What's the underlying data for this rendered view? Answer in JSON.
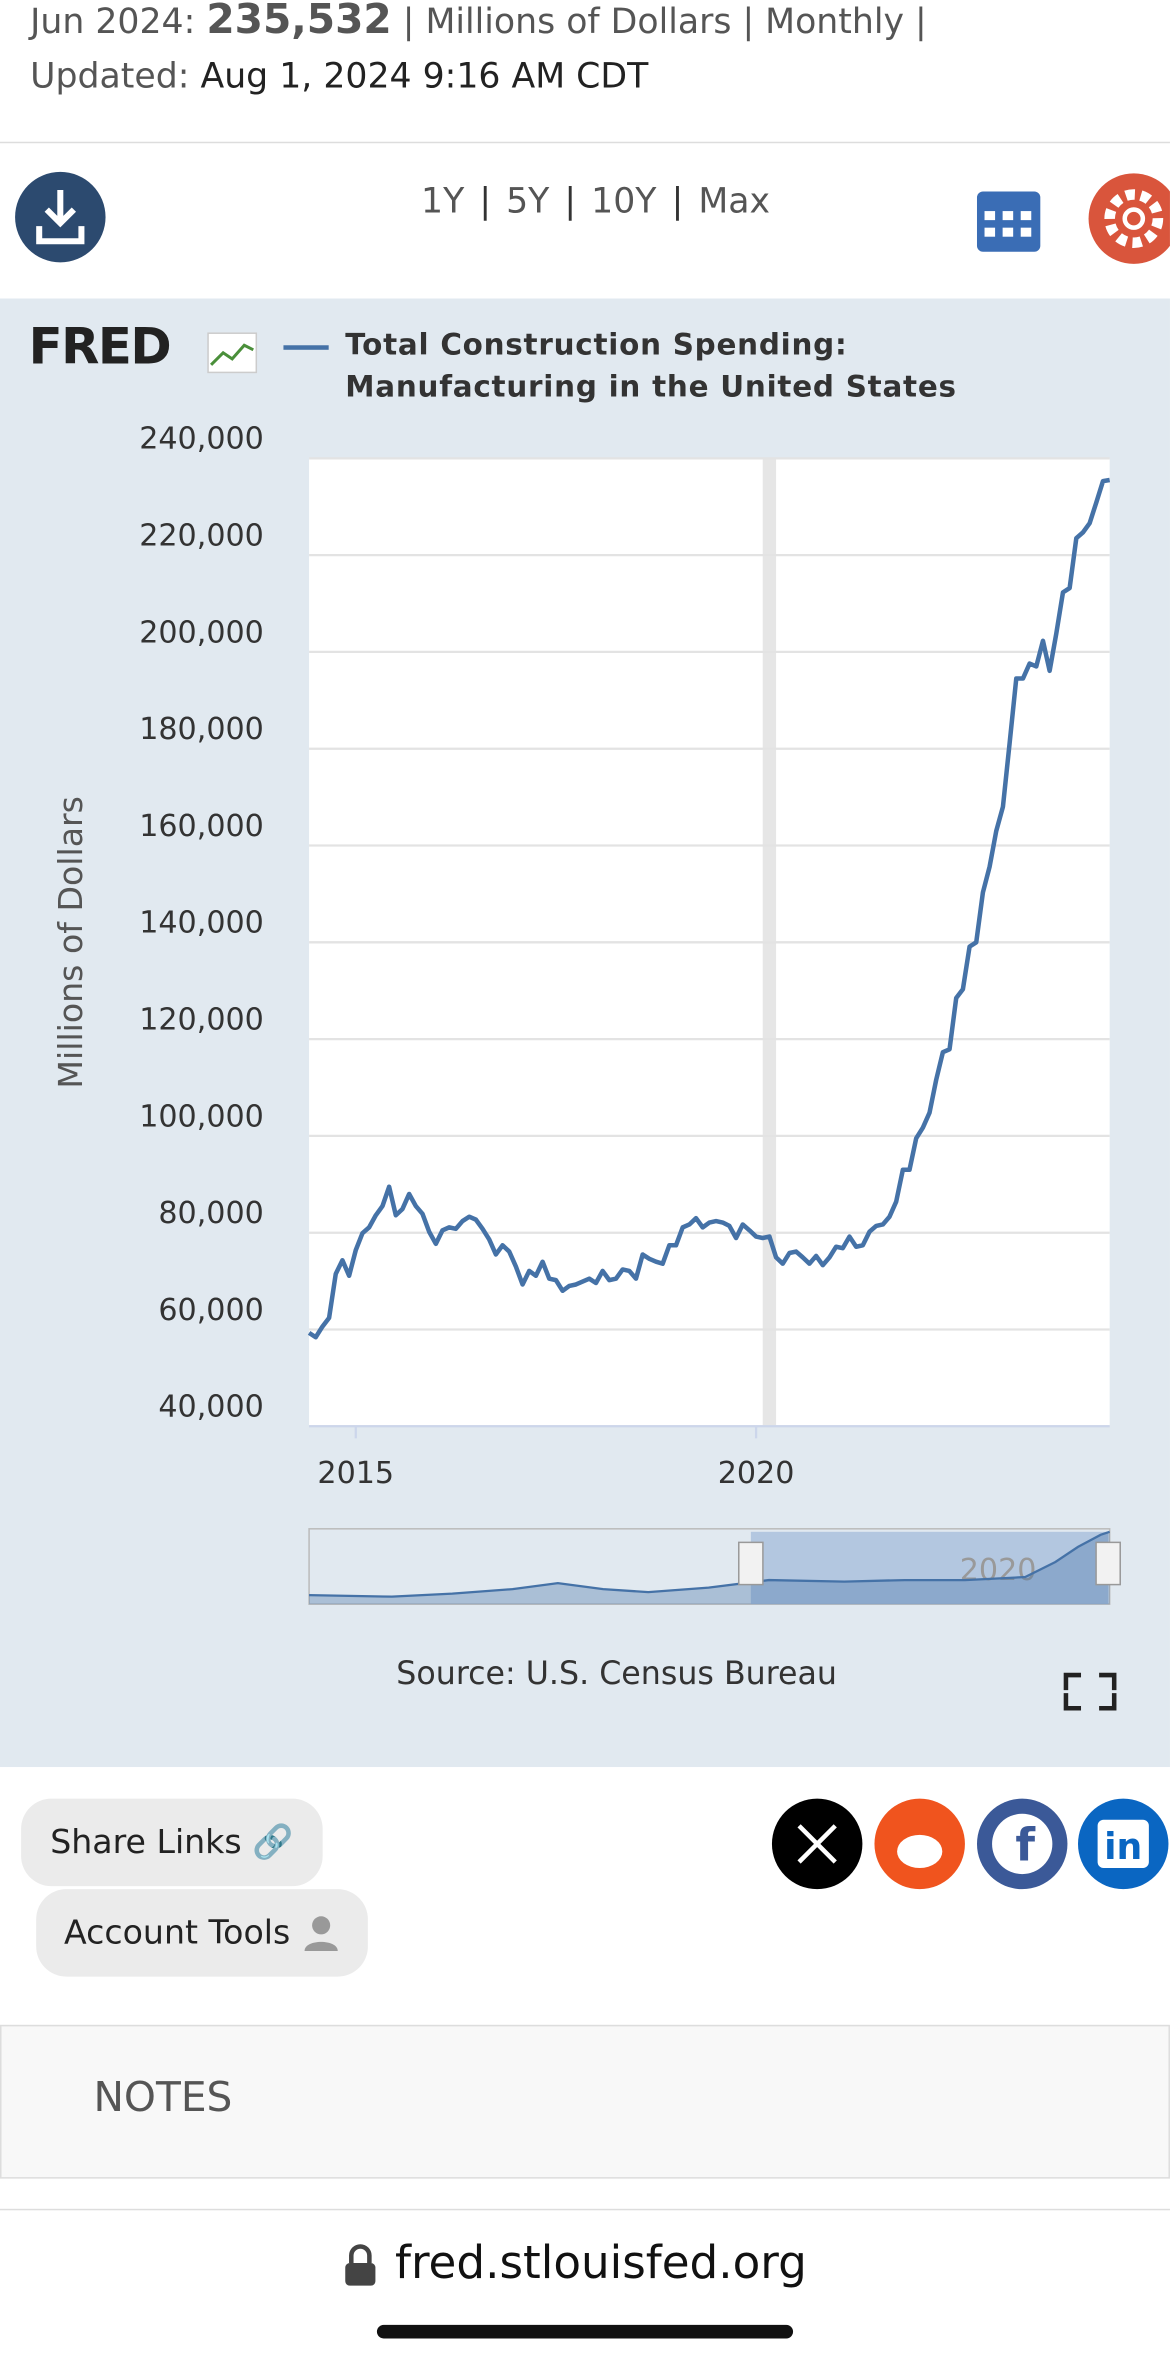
{
  "header": {
    "date": "Jun 2024:",
    "value": "235,532",
    "meta": "| Millions of Dollars | Monthly |",
    "updated_label": "Updated:",
    "updated": "Aug 1, 2024 9:16 AM CDT"
  },
  "ranges": [
    "1Y",
    "5Y",
    "10Y",
    "Max"
  ],
  "logo": "FRED",
  "chart_data": {
    "type": "line",
    "y_label": "Millions of Dollars",
    "source": "Source: U.S. Census Bureau",
    "x": [
      "2014-06",
      "2014-07",
      "2014-08",
      "2014-09",
      "2014-10",
      "2014-11",
      "2014-12",
      "2015-01",
      "2015-02",
      "2015-03",
      "2015-04",
      "2015-05",
      "2015-06",
      "2015-07",
      "2015-08",
      "2015-09",
      "2015-10",
      "2015-11",
      "2015-12",
      "2016-01",
      "2016-02",
      "2016-03",
      "2016-04",
      "2016-05",
      "2016-06",
      "2016-07",
      "2016-08",
      "2016-09",
      "2016-10",
      "2016-11",
      "2016-12",
      "2017-01",
      "2017-02",
      "2017-03",
      "2017-04",
      "2017-05",
      "2017-06",
      "2017-07",
      "2017-08",
      "2017-09",
      "2017-10",
      "2017-11",
      "2017-12",
      "2018-01",
      "2018-02",
      "2018-03",
      "2018-04",
      "2018-05",
      "2018-06",
      "2018-07",
      "2018-08",
      "2018-09",
      "2018-10",
      "2018-11",
      "2018-12",
      "2019-01",
      "2019-02",
      "2019-03",
      "2019-04",
      "2019-05",
      "2019-06",
      "2019-07",
      "2019-08",
      "2019-09",
      "2019-10",
      "2019-11",
      "2019-12",
      "2020-01",
      "2020-02",
      "2020-03",
      "2020-04",
      "2020-05",
      "2020-06",
      "2020-07",
      "2020-08",
      "2020-09",
      "2020-10",
      "2020-11",
      "2020-12",
      "2021-01",
      "2021-02",
      "2021-03",
      "2021-04",
      "2021-05",
      "2021-06",
      "2021-07",
      "2021-08",
      "2021-09",
      "2021-10",
      "2021-11",
      "2021-12",
      "2022-01",
      "2022-02",
      "2022-03",
      "2022-04",
      "2022-05",
      "2022-06",
      "2022-07",
      "2022-08",
      "2022-09",
      "2022-10",
      "2022-11",
      "2022-12",
      "2023-01",
      "2023-02",
      "2023-03",
      "2023-04",
      "2023-05",
      "2023-06",
      "2023-07",
      "2023-08",
      "2023-09",
      "2023-10",
      "2023-11",
      "2023-12",
      "2024-01",
      "2024-02",
      "2024-03",
      "2024-04",
      "2024-05",
      "2024-06"
    ],
    "series": [
      {
        "name": "Total Construction Spending: Manufacturing in the United States",
        "color": "#4572a7",
        "values": [
          59300,
          58400,
          60600,
          62400,
          71500,
          74300,
          71100,
          76400,
          79900,
          81100,
          83600,
          85500,
          89500,
          83600,
          84900,
          88000,
          85500,
          83900,
          80200,
          77700,
          80500,
          81100,
          80800,
          82400,
          83300,
          82700,
          80800,
          78600,
          75500,
          77400,
          76100,
          73000,
          69300,
          72100,
          71100,
          74000,
          70500,
          70200,
          68000,
          69000,
          69300,
          69900,
          70500,
          69600,
          72100,
          70200,
          70500,
          72400,
          72100,
          70500,
          75500,
          74600,
          74000,
          73600,
          77400,
          77400,
          81100,
          81700,
          83000,
          81100,
          82100,
          82400,
          82100,
          81400,
          78900,
          81700,
          80500,
          79200,
          78900,
          79200,
          74900,
          73600,
          75800,
          76100,
          74900,
          73600,
          75200,
          73300,
          74900,
          77100,
          76800,
          79200,
          77100,
          77400,
          80200,
          81400,
          81700,
          83300,
          86400,
          93000,
          93000,
          99500,
          101700,
          104800,
          111600,
          117300,
          117900,
          128500,
          130300,
          139100,
          140000,
          150300,
          155600,
          163000,
          168000,
          181100,
          194500,
          194500,
          197600,
          197000,
          202300,
          196100,
          203800,
          212300,
          213200,
          223500,
          224700,
          226600,
          230900,
          235300,
          235532
        ]
      }
    ],
    "xlim": [
      "2014-06",
      "2024-06"
    ],
    "xticks": [
      {
        "value": "2015-01",
        "label": "2015"
      },
      {
        "value": "2020-01",
        "label": "2020"
      }
    ],
    "ylim": [
      40000,
      240000
    ],
    "yticks": [
      {
        "value": 40000,
        "label": "40,000"
      },
      {
        "value": 60000,
        "label": "60,000"
      },
      {
        "value": 80000,
        "label": "80,000"
      },
      {
        "value": 100000,
        "label": "100,000"
      },
      {
        "value": 120000,
        "label": "120,000"
      },
      {
        "value": 140000,
        "label": "140,000"
      },
      {
        "value": 160000,
        "label": "160,000"
      },
      {
        "value": 180000,
        "label": "180,000"
      },
      {
        "value": 200000,
        "label": "200,000"
      },
      {
        "value": 220000,
        "label": "220,000"
      },
      {
        "value": 240000,
        "label": "240,000"
      }
    ],
    "grid": true,
    "recessions": [
      [
        "2020-02",
        "2020-04"
      ]
    ],
    "recession_color": "#e6e6e6"
  },
  "share": {
    "share_links": "Share Links",
    "account_tools": "Account Tools"
  },
  "notes": "NOTES",
  "url": "fred.stlouisfed.org"
}
